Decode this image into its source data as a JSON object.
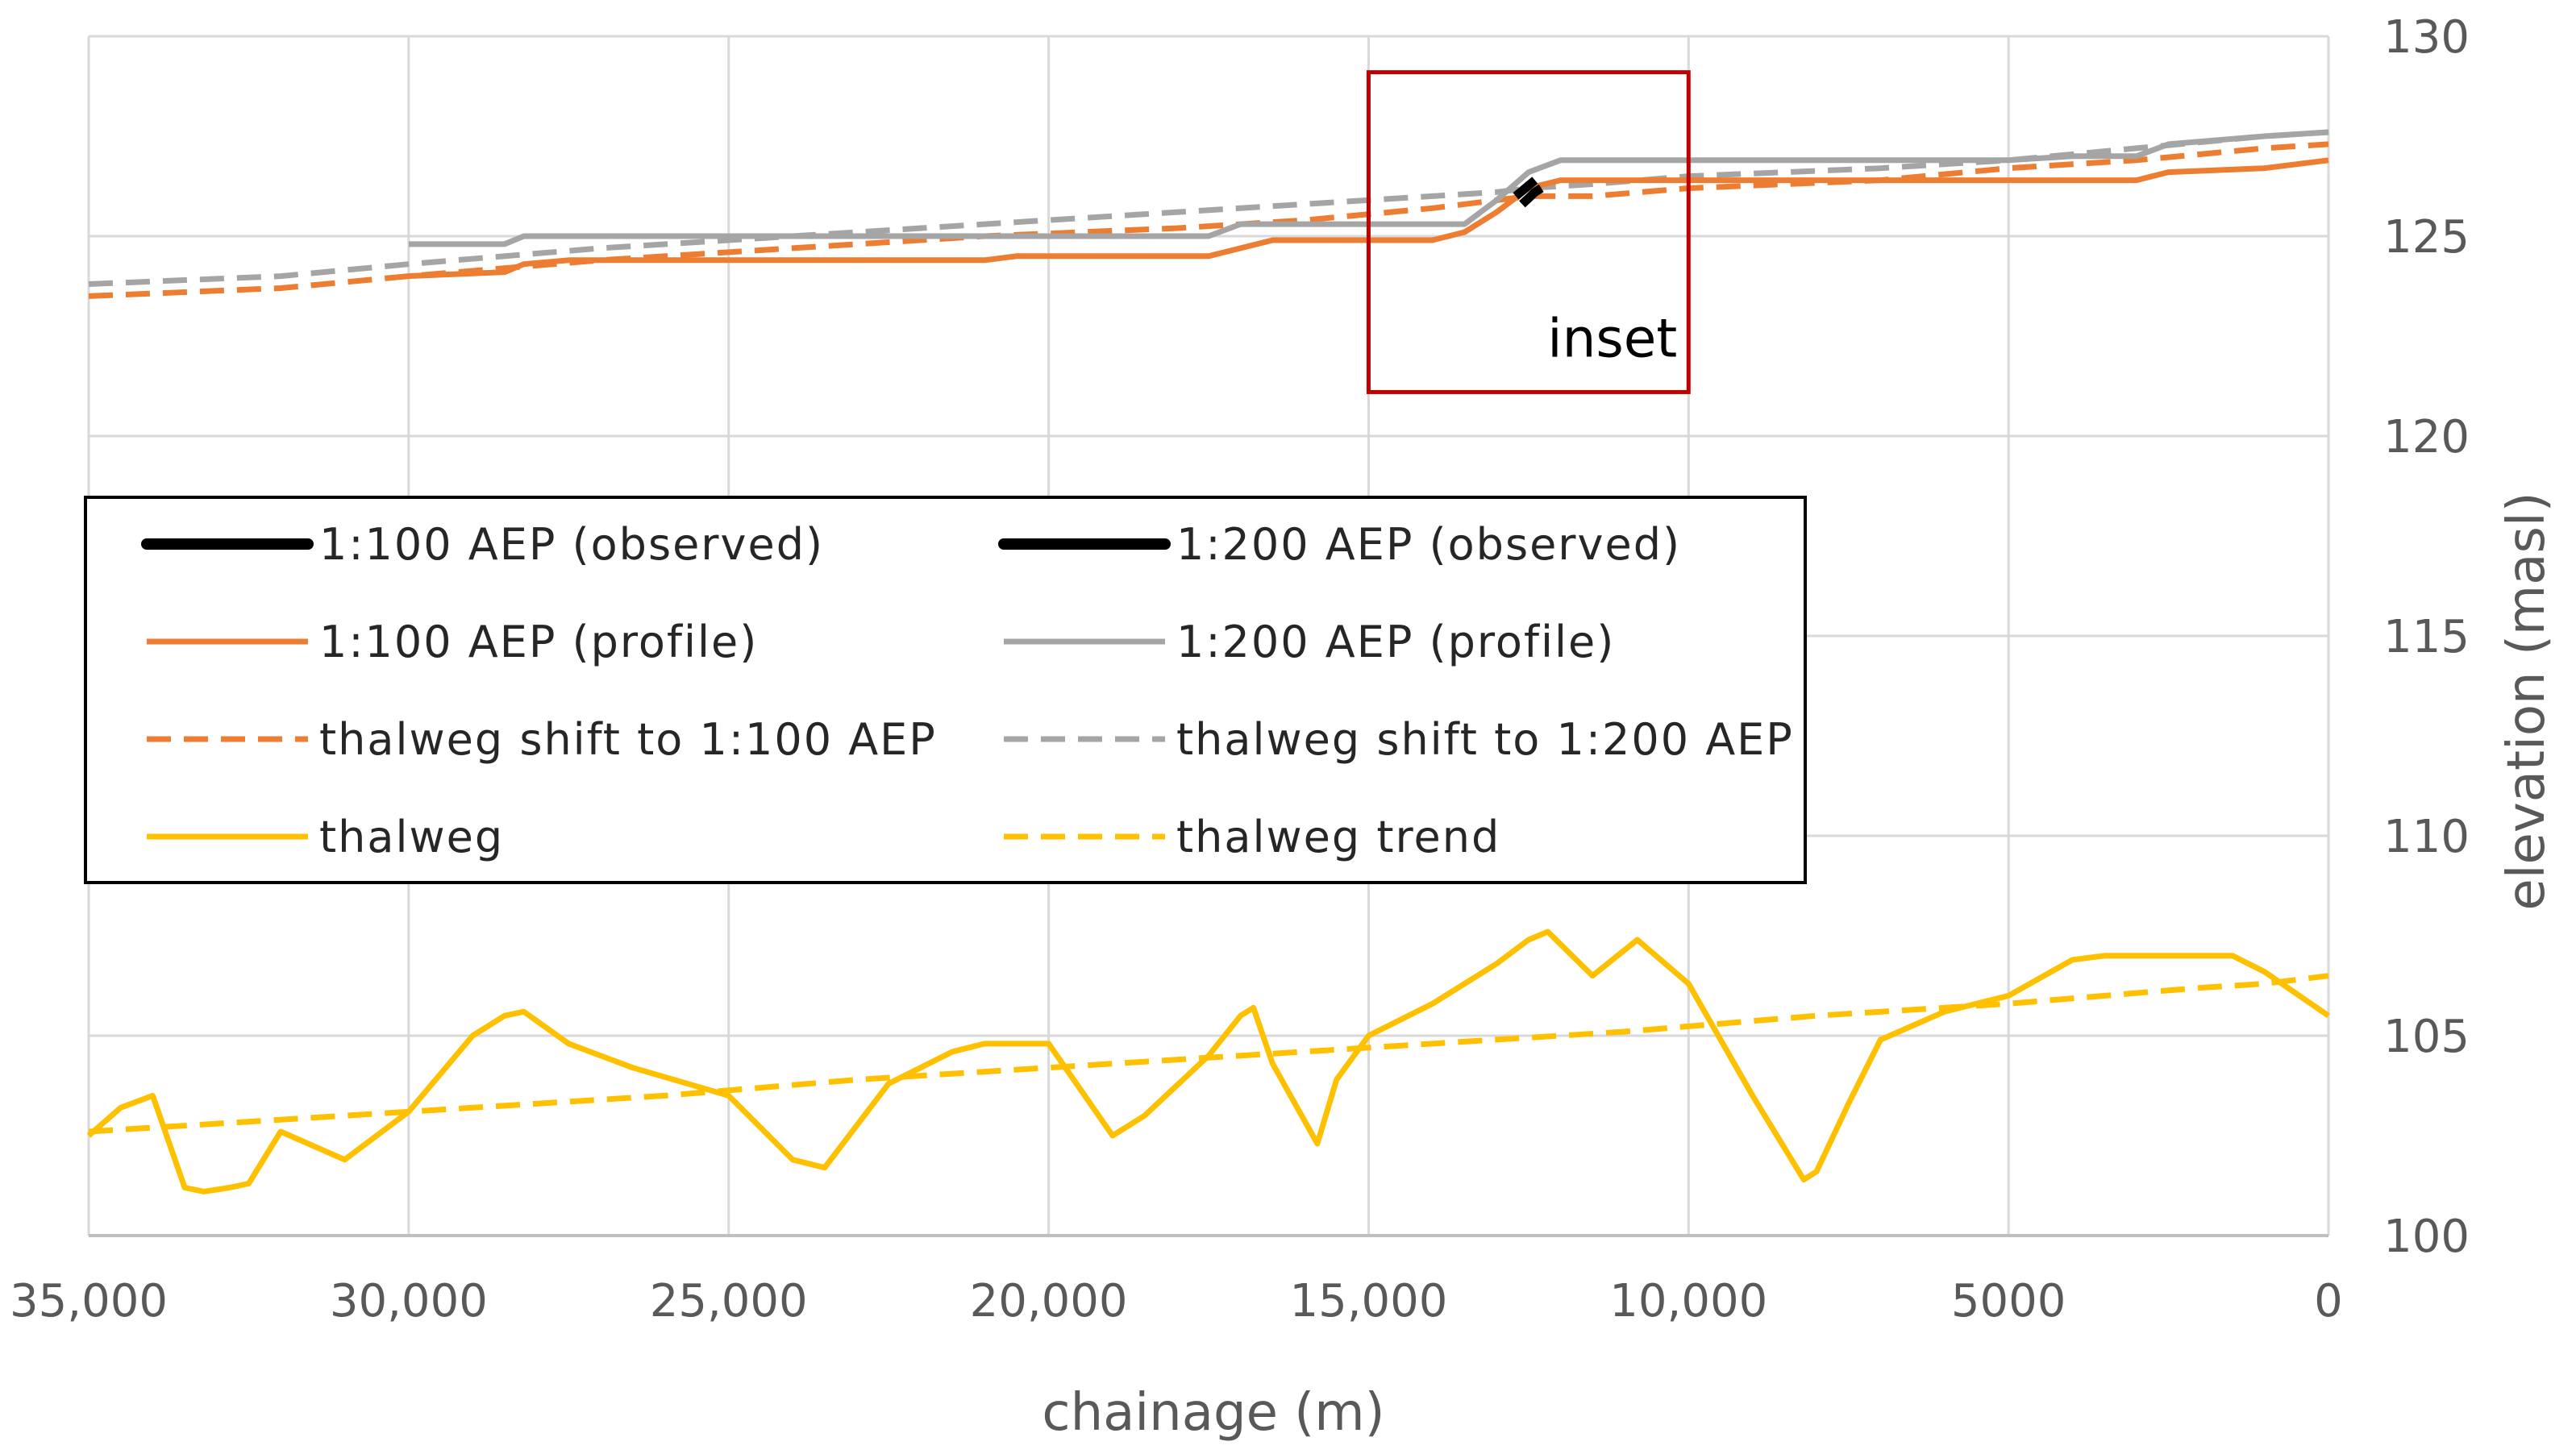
{
  "chart_data": {
    "type": "line",
    "xlabel": "chainage (m)",
    "ylabel": "elevation (masl)",
    "xlim": [
      35000,
      0
    ],
    "ylim": [
      100,
      130
    ],
    "x_reversed": true,
    "x_ticks": [
      35000,
      30000,
      25000,
      20000,
      15000,
      10000,
      5000,
      0
    ],
    "x_tick_labels": [
      "35,000",
      "30,000",
      "25,000",
      "20,000",
      "15,000",
      "10,000",
      "5000",
      "0"
    ],
    "y_ticks": [
      100,
      105,
      110,
      115,
      120,
      125,
      130
    ],
    "y_tick_labels": [
      "100",
      "105",
      "110",
      "115",
      "120",
      "125",
      "130"
    ],
    "y_axis_side": "right",
    "grid": true,
    "legend_position": "center-left",
    "annotation": {
      "label": "inset",
      "x_range": [
        15000,
        10000
      ],
      "y_range": [
        121.1,
        129.1
      ],
      "color": "#c00000"
    },
    "series": [
      {
        "name": "1:100 AEP (observed)",
        "color": "#000000",
        "style": "solid",
        "legend_only": false,
        "x": [
          12600,
          12500,
          12400,
          12300
        ],
        "y": [
          125.8,
          125.95,
          126.1,
          126.2
        ]
      },
      {
        "name": "1:200 AEP (observed)",
        "color": "#000000",
        "style": "solid",
        "legend_only": false,
        "x": [
          12700,
          12550,
          12400
        ],
        "y": [
          126.0,
          126.2,
          126.4
        ]
      },
      {
        "name": "1:100 AEP (profile)",
        "color": "#ed7d31",
        "style": "solid",
        "x": [
          30000,
          28500,
          28200,
          27500,
          21000,
          20500,
          17500,
          17000,
          16500,
          14000,
          13500,
          13000,
          12500,
          12000,
          11000,
          3000,
          2500,
          1000,
          0
        ],
        "y": [
          124.0,
          124.1,
          124.3,
          124.4,
          124.4,
          124.5,
          124.5,
          124.7,
          124.9,
          124.9,
          125.1,
          125.6,
          126.2,
          126.4,
          126.4,
          126.4,
          126.6,
          126.7,
          126.9
        ]
      },
      {
        "name": "1:200 AEP (profile)",
        "color": "#a5a5a5",
        "style": "solid",
        "x": [
          30000,
          28500,
          28200,
          17500,
          17000,
          13500,
          13000,
          12500,
          12000,
          7000,
          5000,
          4000,
          3000,
          2500,
          1000,
          0
        ],
        "y": [
          124.8,
          124.8,
          125.0,
          125.0,
          125.3,
          125.3,
          125.9,
          126.6,
          126.9,
          126.9,
          126.9,
          127.0,
          127.0,
          127.3,
          127.5,
          127.6
        ]
      },
      {
        "name": "thalweg shift to 1:100 AEP",
        "color": "#ed7d31",
        "style": "dashed",
        "x": [
          35000,
          32000,
          30000,
          27000,
          24000,
          21000,
          18000,
          16000,
          14000,
          13000,
          12500,
          11500,
          10000,
          7000,
          5000,
          3000,
          1000,
          0
        ],
        "y": [
          123.5,
          123.7,
          124.0,
          124.4,
          124.7,
          125.0,
          125.2,
          125.4,
          125.7,
          125.9,
          126.0,
          126.0,
          126.2,
          126.4,
          126.7,
          126.9,
          127.2,
          127.3
        ]
      },
      {
        "name": "thalweg shift to 1:200 AEP",
        "color": "#a5a5a5",
        "style": "dashed",
        "x": [
          35000,
          32000,
          30000,
          27000,
          24000,
          21000,
          18000,
          16000,
          14000,
          13000,
          12500,
          11500,
          10000,
          7000,
          5000,
          3000,
          1000,
          0
        ],
        "y": [
          123.8,
          124.0,
          124.3,
          124.7,
          125.0,
          125.3,
          125.6,
          125.8,
          126.0,
          126.1,
          126.2,
          126.3,
          126.5,
          126.7,
          126.9,
          127.2,
          127.5,
          127.6
        ]
      },
      {
        "name": "thalweg",
        "color": "#ffc000",
        "style": "solid",
        "x": [
          35000,
          34500,
          34000,
          33500,
          33200,
          32800,
          32500,
          32000,
          31000,
          30000,
          29000,
          28500,
          28200,
          27500,
          26500,
          25000,
          24000,
          23500,
          22500,
          21500,
          21000,
          20000,
          19000,
          18500,
          17500,
          17000,
          16800,
          16500,
          15800,
          15500,
          15000,
          14000,
          13000,
          12500,
          12200,
          11500,
          10800,
          10000,
          9000,
          8200,
          8000,
          7500,
          7000,
          6000,
          5000,
          4000,
          3500,
          2000,
          1500,
          1000,
          0
        ],
        "y": [
          102.5,
          103.2,
          103.5,
          101.2,
          101.1,
          101.2,
          101.3,
          102.6,
          101.9,
          103.1,
          105.0,
          105.5,
          105.6,
          104.8,
          104.2,
          103.5,
          101.9,
          101.7,
          103.8,
          104.6,
          104.8,
          104.8,
          102.5,
          103.0,
          104.5,
          105.5,
          105.7,
          104.3,
          102.3,
          103.9,
          105.0,
          105.8,
          106.8,
          107.4,
          107.6,
          106.5,
          107.4,
          106.3,
          103.5,
          101.4,
          101.6,
          103.3,
          104.9,
          105.6,
          106.0,
          106.9,
          107.0,
          107.0,
          107.0,
          106.6,
          105.5
        ]
      },
      {
        "name": "thalweg trend",
        "color": "#ffc000",
        "style": "dashed",
        "x": [
          35000,
          32000,
          29000,
          26000,
          23000,
          20000,
          17000,
          14000,
          11000,
          8000,
          5000,
          2000,
          1000,
          0
        ],
        "y": [
          102.6,
          102.9,
          103.2,
          103.5,
          103.9,
          104.2,
          104.5,
          104.8,
          105.1,
          105.5,
          105.8,
          106.2,
          106.3,
          106.5
        ]
      }
    ]
  }
}
